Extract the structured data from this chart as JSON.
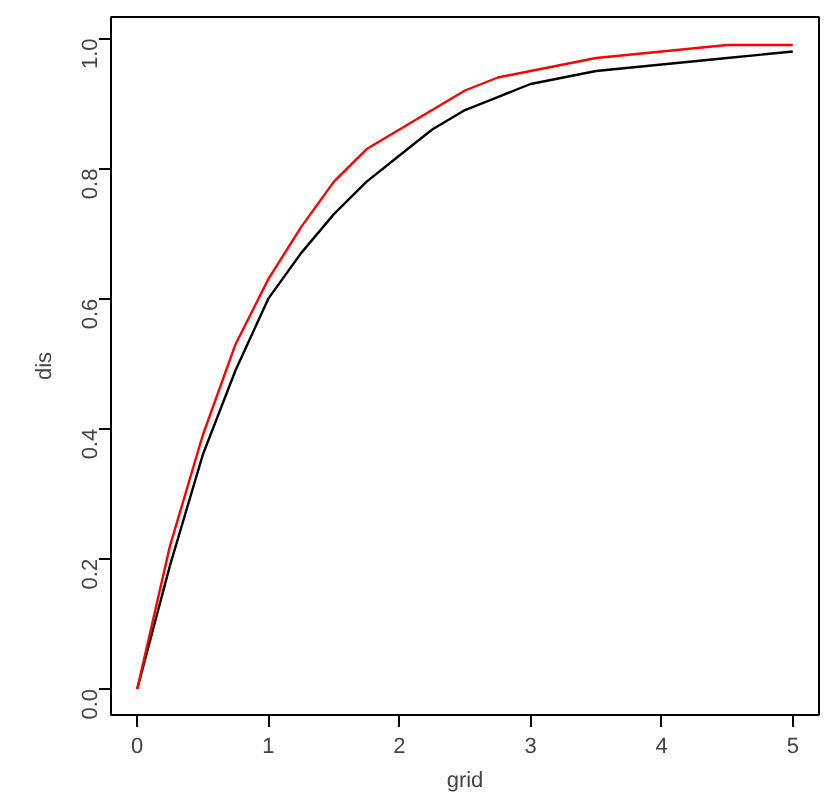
{
  "chart_data": {
    "type": "line",
    "xlabel": "grid",
    "ylabel": "dis",
    "xlim": [
      -0.2,
      5.2
    ],
    "ylim": [
      -0.04,
      1.033
    ],
    "xticks": [
      0,
      1,
      2,
      3,
      4,
      5
    ],
    "yticks": [
      {
        "value": 0,
        "label": "0.0"
      },
      {
        "value": 0.2,
        "label": "0.2"
      },
      {
        "value": 0.4,
        "label": "0.4"
      },
      {
        "value": 0.6,
        "label": "0.6"
      },
      {
        "value": 0.8,
        "label": "0.8"
      },
      {
        "value": 1,
        "label": "1.0"
      }
    ],
    "grid": false,
    "x": [
      0,
      0.25,
      0.5,
      0.75,
      1,
      1.25,
      1.5,
      1.75,
      2,
      2.25,
      2.5,
      2.75,
      3,
      3.5,
      4,
      4.5,
      5
    ],
    "series": [
      {
        "color": "#000000",
        "values": [
          0,
          0.19,
          0.36,
          0.49,
          0.6,
          0.67,
          0.73,
          0.78,
          0.82,
          0.86,
          0.89,
          0.91,
          0.93,
          0.95,
          0.96,
          0.97,
          0.98
        ]
      },
      {
        "color": "#ff0000",
        "values": [
          0,
          0.22,
          0.39,
          0.53,
          0.63,
          0.71,
          0.78,
          0.83,
          0.86,
          0.89,
          0.92,
          0.94,
          0.95,
          0.97,
          0.98,
          0.99,
          0.99
        ]
      }
    ]
  }
}
